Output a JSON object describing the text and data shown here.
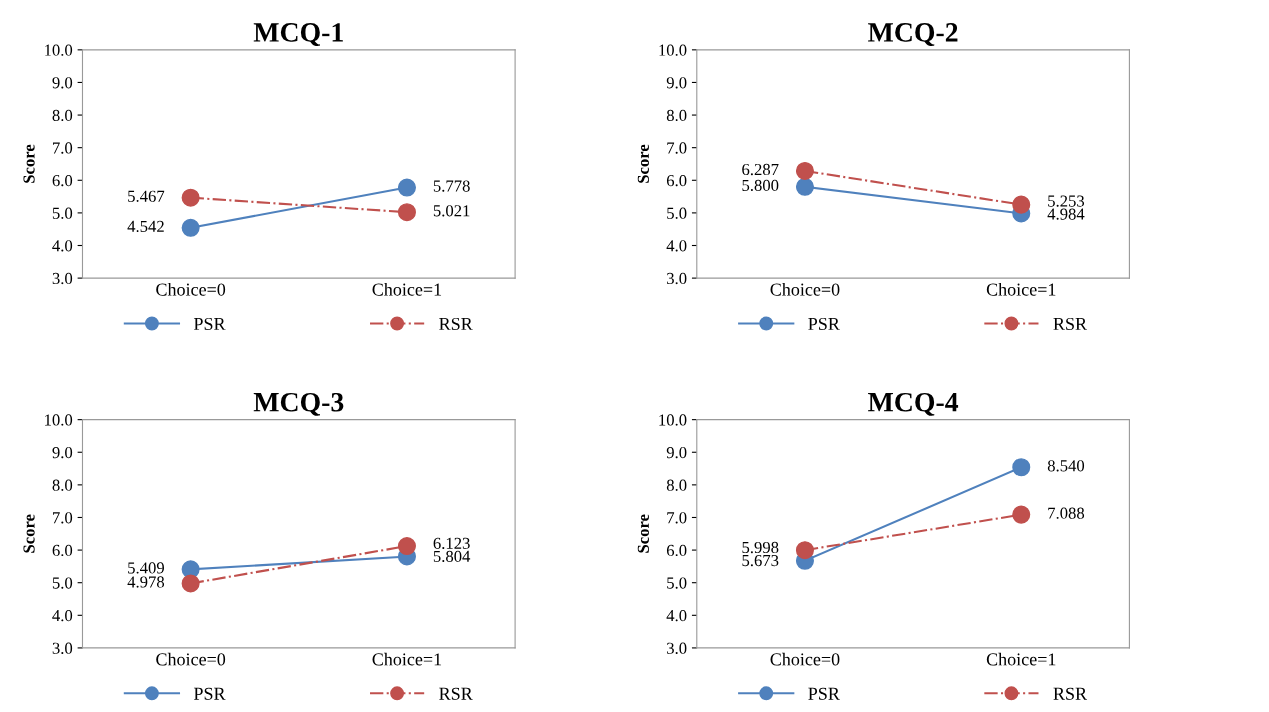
{
  "chart_data": [
    {
      "type": "line",
      "title": "MCQ-1",
      "ylabel": "Score",
      "categories": [
        "Choice=0",
        "Choice=1"
      ],
      "ylim": [
        3.0,
        10.0
      ],
      "yticks": [
        {
          "value": 3,
          "label": "3.0"
        },
        {
          "value": 4,
          "label": "4.0"
        },
        {
          "value": 5,
          "label": "5.0"
        },
        {
          "value": 6,
          "label": "6.0"
        },
        {
          "value": 7,
          "label": "7.0"
        },
        {
          "value": 8,
          "label": "8.0"
        },
        {
          "value": 9,
          "label": "9.0"
        },
        {
          "value": 10,
          "label": "10.0"
        }
      ],
      "marker": "circle",
      "legend": "bottom",
      "series": [
        {
          "name": "PSR",
          "color": "#4f81bd",
          "line_style": "solid",
          "values": [
            4.542,
            5.778
          ],
          "value_labels": [
            "4.542",
            "5.778"
          ]
        },
        {
          "name": "RSR",
          "color": "#c0504d",
          "line_style": "dashdot",
          "values": [
            5.467,
            5.021
          ],
          "value_labels": [
            "5.467",
            "5.021"
          ]
        }
      ]
    },
    {
      "type": "line",
      "title": "MCQ-2",
      "ylabel": "Score",
      "categories": [
        "Choice=0",
        "Choice=1"
      ],
      "ylim": [
        3.0,
        10.0
      ],
      "yticks": [
        {
          "value": 3,
          "label": "3.0"
        },
        {
          "value": 4,
          "label": "4.0"
        },
        {
          "value": 5,
          "label": "5.0"
        },
        {
          "value": 6,
          "label": "6.0"
        },
        {
          "value": 7,
          "label": "7.0"
        },
        {
          "value": 8,
          "label": "8.0"
        },
        {
          "value": 9,
          "label": "9.0"
        },
        {
          "value": 10,
          "label": "10.0"
        }
      ],
      "marker": "circle",
      "legend": "bottom",
      "series": [
        {
          "name": "PSR",
          "color": "#4f81bd",
          "line_style": "solid",
          "values": [
            5.8,
            4.984
          ],
          "value_labels": [
            "5.800",
            "4.984"
          ]
        },
        {
          "name": "RSR",
          "color": "#c0504d",
          "line_style": "dashdot",
          "values": [
            6.287,
            5.253
          ],
          "value_labels": [
            "6.287",
            "5.253"
          ]
        }
      ]
    },
    {
      "type": "line",
      "title": "MCQ-3",
      "ylabel": "Score",
      "categories": [
        "Choice=0",
        "Choice=1"
      ],
      "ylim": [
        3.0,
        10.0
      ],
      "yticks": [
        {
          "value": 3,
          "label": "3.0"
        },
        {
          "value": 4,
          "label": "4.0"
        },
        {
          "value": 5,
          "label": "5.0"
        },
        {
          "value": 6,
          "label": "6.0"
        },
        {
          "value": 7,
          "label": "7.0"
        },
        {
          "value": 8,
          "label": "8.0"
        },
        {
          "value": 9,
          "label": "9.0"
        },
        {
          "value": 10,
          "label": "10.0"
        }
      ],
      "marker": "circle",
      "legend": "bottom",
      "series": [
        {
          "name": "PSR",
          "color": "#4f81bd",
          "line_style": "solid",
          "values": [
            5.409,
            5.804
          ],
          "value_labels": [
            "5.409",
            "5.804"
          ]
        },
        {
          "name": "RSR",
          "color": "#c0504d",
          "line_style": "dashdot",
          "values": [
            4.978,
            6.123
          ],
          "value_labels": [
            "4.978",
            "6.123"
          ]
        }
      ]
    },
    {
      "type": "line",
      "title": "MCQ-4",
      "ylabel": "Score",
      "categories": [
        "Choice=0",
        "Choice=1"
      ],
      "ylim": [
        3.0,
        10.0
      ],
      "yticks": [
        {
          "value": 3,
          "label": "3.0"
        },
        {
          "value": 4,
          "label": "4.0"
        },
        {
          "value": 5,
          "label": "5.0"
        },
        {
          "value": 6,
          "label": "6.0"
        },
        {
          "value": 7,
          "label": "7.0"
        },
        {
          "value": 8,
          "label": "8.0"
        },
        {
          "value": 9,
          "label": "9.0"
        },
        {
          "value": 10,
          "label": "10.0"
        }
      ],
      "marker": "circle",
      "legend": "bottom",
      "series": [
        {
          "name": "PSR",
          "color": "#4f81bd",
          "line_style": "solid",
          "values": [
            5.673,
            8.54
          ],
          "value_labels": [
            "5.673",
            "8.540"
          ]
        },
        {
          "name": "RSR",
          "color": "#c0504d",
          "line_style": "dashdot",
          "values": [
            5.998,
            7.088
          ],
          "value_labels": [
            "5.998",
            "7.088"
          ]
        }
      ]
    }
  ]
}
